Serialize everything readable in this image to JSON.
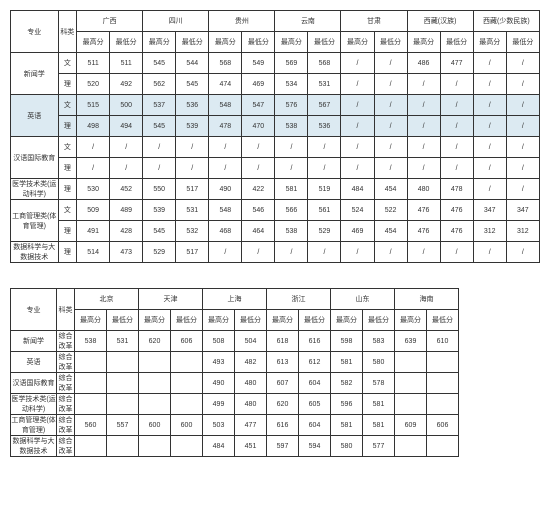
{
  "table1": {
    "header_labels": {
      "major": "专业",
      "category": "科类",
      "regions": [
        "广西",
        "四川",
        "贵州",
        "云南",
        "甘肃",
        "西藏(汉族)",
        "西藏(少数民族)"
      ],
      "max": "最高分",
      "min": "最低分"
    },
    "rows": [
      {
        "major": "新闻学",
        "sub": [
          {
            "cat": "文",
            "v": [
              "511",
              "511",
              "545",
              "544",
              "568",
              "549",
              "569",
              "568",
              "/",
              "/",
              "486",
              "477",
              "/",
              "/"
            ]
          },
          {
            "cat": "理",
            "v": [
              "520",
              "492",
              "562",
              "545",
              "474",
              "469",
              "534",
              "531",
              "/",
              "/",
              "/",
              "/",
              "/",
              "/"
            ]
          }
        ]
      },
      {
        "major": "英语",
        "hl": true,
        "sub": [
          {
            "cat": "文",
            "v": [
              "515",
              "500",
              "537",
              "536",
              "548",
              "547",
              "576",
              "567",
              "/",
              "/",
              "/",
              "/",
              "/",
              "/"
            ]
          },
          {
            "cat": "理",
            "v": [
              "498",
              "494",
              "545",
              "539",
              "478",
              "470",
              "538",
              "536",
              "/",
              "/",
              "/",
              "/",
              "/",
              "/"
            ]
          }
        ]
      },
      {
        "major": "汉语国际教育",
        "sub": [
          {
            "cat": "文",
            "v": [
              "/",
              "/",
              "/",
              "/",
              "/",
              "/",
              "/",
              "/",
              "/",
              "/",
              "/",
              "/",
              "/",
              "/"
            ]
          },
          {
            "cat": "理",
            "v": [
              "/",
              "/",
              "/",
              "/",
              "/",
              "/",
              "/",
              "/",
              "/",
              "/",
              "/",
              "/",
              "/",
              "/"
            ]
          }
        ]
      },
      {
        "major": "医学技术类(运动科学)",
        "sub": [
          {
            "cat": "理",
            "v": [
              "530",
              "452",
              "550",
              "517",
              "490",
              "422",
              "581",
              "519",
              "484",
              "454",
              "480",
              "478",
              "/",
              "/"
            ]
          }
        ]
      },
      {
        "major": "工商管理类(体育管理)",
        "sub": [
          {
            "cat": "文",
            "v": [
              "509",
              "489",
              "539",
              "531",
              "548",
              "546",
              "566",
              "561",
              "524",
              "522",
              "476",
              "476",
              "347",
              "347"
            ]
          },
          {
            "cat": "理",
            "v": [
              "491",
              "428",
              "545",
              "532",
              "468",
              "464",
              "538",
              "529",
              "469",
              "454",
              "476",
              "476",
              "312",
              "312"
            ]
          }
        ]
      },
      {
        "major": "数据科学与大数据技术",
        "sub": [
          {
            "cat": "理",
            "v": [
              "514",
              "473",
              "529",
              "517",
              "/",
              "/",
              "/",
              "/",
              "/",
              "/",
              "/",
              "/",
              "/",
              "/"
            ]
          }
        ]
      }
    ]
  },
  "table2": {
    "header_labels": {
      "major": "专业",
      "category": "科类",
      "regions": [
        "北京",
        "天津",
        "上海",
        "浙江",
        "山东",
        "海南"
      ],
      "max": "最高分",
      "min": "最低分"
    },
    "rows": [
      {
        "major": "新闻学",
        "cat": "综合改革",
        "v": [
          "538",
          "531",
          "620",
          "606",
          "508",
          "504",
          "618",
          "616",
          "598",
          "583",
          "639",
          "610"
        ]
      },
      {
        "major": "英语",
        "cat": "综合改革",
        "v": [
          "",
          "",
          "",
          "",
          "493",
          "482",
          "613",
          "612",
          "581",
          "580",
          "",
          ""
        ]
      },
      {
        "major": "汉语国际教育",
        "cat": "综合改革",
        "v": [
          "",
          "",
          "",
          "",
          "490",
          "480",
          "607",
          "604",
          "582",
          "578",
          "",
          ""
        ]
      },
      {
        "major": "医学技术类(运动科学)",
        "cat": "综合改革",
        "v": [
          "",
          "",
          "",
          "",
          "499",
          "480",
          "620",
          "605",
          "596",
          "581",
          "",
          ""
        ]
      },
      {
        "major": "工商管理类(体育管理)",
        "cat": "综合改革",
        "v": [
          "560",
          "557",
          "600",
          "600",
          "503",
          "477",
          "616",
          "604",
          "581",
          "581",
          "609",
          "606"
        ]
      },
      {
        "major": "数据科学与大数据技术",
        "cat": "综合改革",
        "v": [
          "",
          "",
          "",
          "",
          "484",
          "451",
          "597",
          "594",
          "580",
          "577",
          "",
          ""
        ]
      }
    ]
  }
}
